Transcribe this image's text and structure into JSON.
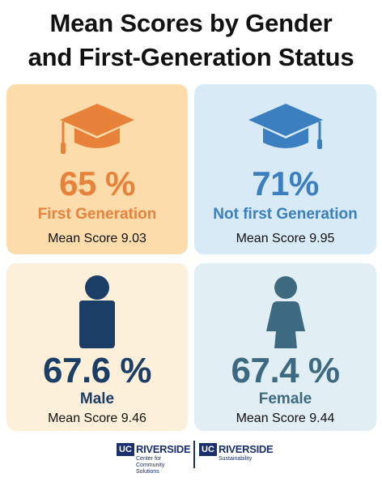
{
  "title": {
    "line1": "Mean Scores by Gender",
    "line2": "and First-Generation Status"
  },
  "colors": {
    "orange": "#e8823a",
    "blue": "#3b7fc0",
    "navy": "#1a3e66",
    "slate": "#3d6a80",
    "brand_navy": "#1a2f6d"
  },
  "cards": [
    {
      "icon": "graduation-cap-icon",
      "percent": "65 %",
      "label": "First Generation",
      "score": "Mean Score 9.03"
    },
    {
      "icon": "graduation-cap-icon",
      "percent": "71%",
      "label": "Not first Generation",
      "score": "Mean Score 9.95"
    },
    {
      "icon": "male-person-icon",
      "percent": "67.6 %",
      "label": "Male",
      "score": "Mean Score 9.46"
    },
    {
      "icon": "female-person-icon",
      "percent": "67.4 %",
      "label": "Female",
      "score": "Mean Score 9.44"
    }
  ],
  "footer": {
    "logo1": {
      "badge": "UC",
      "name": "RIVERSIDE",
      "sub_line1": "Center for Community",
      "sub_line2": "Solutions"
    },
    "logo2": {
      "badge": "UC",
      "name": "RIVERSIDE",
      "sub_line1": "Sustainability"
    }
  }
}
